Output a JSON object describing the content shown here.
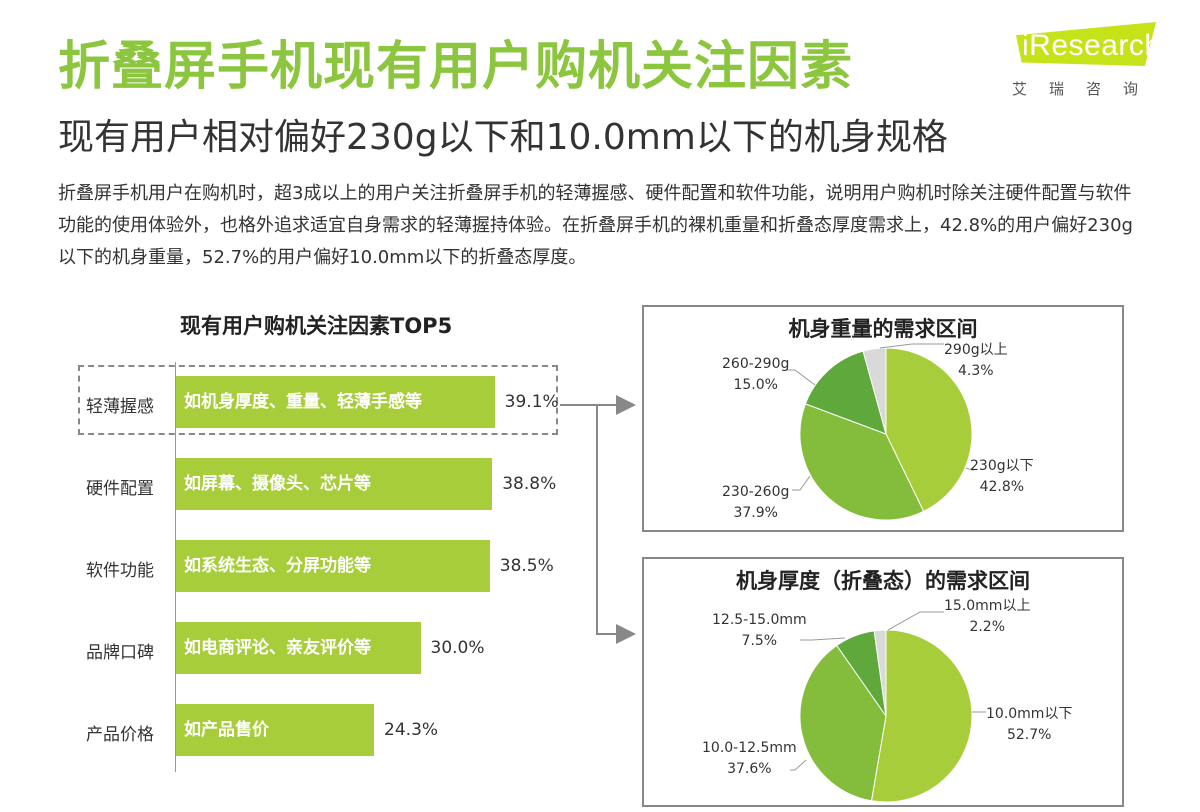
{
  "header": {
    "title": "折叠屏手机现有用户购机关注因素",
    "subtitle": "现有用户相对偏好230g以下和10.0mm以下的机身规格",
    "description": "折叠屏手机用户在购机时，超3成以上的用户关注折叠屏手机的轻薄握感、硬件配置和软件功能，说明用户购机时除关注硬件配置与软件功能的使用体验外，也格外追求适宜自身需求的轻薄握持体验。在折叠屏手机的裸机重量和折叠态厚度需求上，42.8%的用户偏好230g以下的机身重量，52.7%的用户偏好10.0mm以下的折叠态厚度。"
  },
  "logo": {
    "text": "iResearch",
    "cn": "艾瑞咨询"
  },
  "colors": {
    "title": "#8bc63e",
    "bar": "#a8cd3a",
    "pie_light": "#a8cd3a",
    "pie_mid": "#84bc3b",
    "pie_dark": "#5fa83b",
    "pie_gray": "#d9d9d9"
  },
  "chart_data": [
    {
      "type": "bar",
      "title": "现有用户购机关注因素TOP5",
      "categories": [
        "轻薄握感",
        "硬件配置",
        "软件功能",
        "品牌口碑",
        "产品价格"
      ],
      "bar_labels": [
        "如机身厚度、重量、轻薄手感等",
        "如屏幕、摄像头、芯片等",
        "如系统生态、分屏功能等",
        "如电商评论、亲友评价等",
        "如产品售价"
      ],
      "values": [
        39.1,
        38.8,
        38.5,
        30.0,
        24.3
      ],
      "value_labels": [
        "39.1%",
        "38.8%",
        "38.5%",
        "30.0%",
        "24.3%"
      ],
      "highlight": "轻薄握感",
      "orientation": "horizontal"
    },
    {
      "type": "pie",
      "title": "机身重量的需求区间",
      "slices": [
        {
          "label": "230g以下",
          "value": 42.8,
          "pct": "42.8%",
          "color": "#a8cd3a"
        },
        {
          "label": "230-260g",
          "value": 37.9,
          "pct": "37.9%",
          "color": "#84bc3b"
        },
        {
          "label": "260-290g",
          "value": 15.0,
          "pct": "15.0%",
          "color": "#5fa83b"
        },
        {
          "label": "290g以上",
          "value": 4.3,
          "pct": "4.3%",
          "color": "#d9d9d9"
        }
      ]
    },
    {
      "type": "pie",
      "title": "机身厚度（折叠态）的需求区间",
      "slices": [
        {
          "label": "10.0mm以下",
          "value": 52.7,
          "pct": "52.7%",
          "color": "#a8cd3a"
        },
        {
          "label": "10.0-12.5mm",
          "value": 37.6,
          "pct": "37.6%",
          "color": "#84bc3b"
        },
        {
          "label": "12.5-15.0mm",
          "value": 7.5,
          "pct": "7.5%",
          "color": "#5fa83b"
        },
        {
          "label": "15.0mm以上",
          "value": 2.2,
          "pct": "2.2%",
          "color": "#d9d9d9"
        }
      ]
    }
  ]
}
